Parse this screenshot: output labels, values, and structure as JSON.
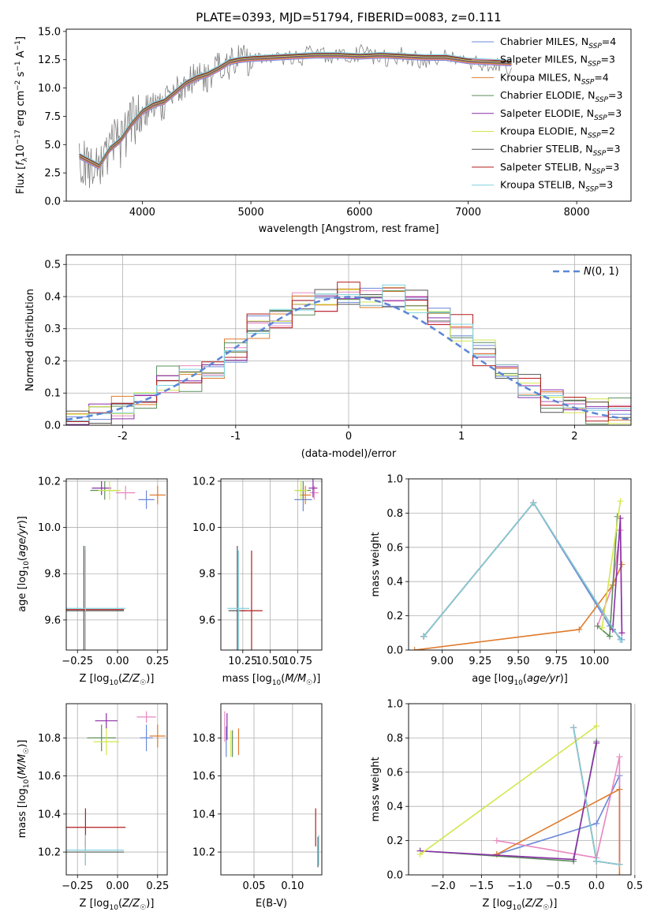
{
  "legend_series": [
    {
      "label": "Chabrier MILES, N_SSP=4",
      "color": "#6a88d8"
    },
    {
      "label": "Salpeter MILES, N_SSP=3",
      "color": "#e787c0"
    },
    {
      "label": "Kroupa MILES, N_SSP=4",
      "color": "#e07b2c"
    },
    {
      "label": "Chabrier ELODIE, N_SSP=3",
      "color": "#5b8f5b"
    },
    {
      "label": "Salpeter ELODIE, N_SSP=3",
      "color": "#8a2fa8"
    },
    {
      "label": "Kroupa ELODIE, N_SSP=2",
      "color": "#d3e64a"
    },
    {
      "label": "Chabrier STELIB, N_SSP=3",
      "color": "#555555"
    },
    {
      "label": "Salpeter STELIB, N_SSP=3",
      "color": "#b51c1c"
    },
    {
      "label": "Kroupa STELIB, N_SSP=3",
      "color": "#7fd3de"
    }
  ],
  "chart_data": [
    {
      "id": "spectrum",
      "type": "line",
      "title": "PLATE=0393, MJD=51794, FIBERID=0083, z=0.111",
      "xlabel": "wavelength [Angstrom, rest frame]",
      "ylabel": "Flux [f_λ 10^-17 erg cm^-2 s^-1 A^-1]",
      "xlim": [
        3300,
        8500
      ],
      "ylim": [
        0,
        15.2
      ],
      "xticks": [
        4000,
        5000,
        6000,
        7000,
        8000
      ],
      "yticks": [
        0.0,
        2.5,
        5.0,
        7.5,
        10.0,
        12.5,
        15.0
      ],
      "ytick_labels": [
        "0.0",
        "2.5",
        "5.0",
        "7.5",
        "10.0",
        "12.5",
        "15.0"
      ],
      "legend": "upper-right",
      "grid": false,
      "data_color": "#808080",
      "model_x": [
        3420,
        3500,
        3600,
        3700,
        3800,
        3900,
        4000,
        4100,
        4200,
        4300,
        4400,
        4500,
        4600,
        4700,
        4800,
        4900,
        5000,
        5200,
        5400,
        5600,
        5800,
        6000,
        6200,
        6400,
        6600,
        6800,
        7000,
        7200,
        7400
      ],
      "model_y": [
        4.0,
        3.6,
        3.1,
        4.6,
        5.4,
        6.8,
        7.9,
        8.5,
        8.8,
        9.6,
        10.4,
        10.9,
        11.2,
        11.7,
        12.3,
        12.5,
        12.6,
        12.7,
        12.8,
        12.9,
        12.9,
        12.8,
        12.9,
        12.8,
        12.7,
        12.7,
        12.4,
        12.3,
        12.2
      ],
      "observed_x": [
        3420,
        3500,
        3600,
        3700,
        3800,
        3900,
        4000,
        4100,
        4200,
        4300,
        4400,
        4500,
        4600,
        4700,
        4800,
        4900,
        5000,
        5200,
        5400,
        5600,
        5800,
        6000,
        6200,
        6400,
        6600,
        6800,
        7000,
        7200,
        7400
      ],
      "observed_y": [
        4.1,
        3.4,
        2.8,
        4.9,
        5.0,
        7.2,
        7.5,
        8.8,
        8.4,
        9.9,
        10.0,
        11.3,
        10.9,
        12.0,
        12.0,
        12.9,
        12.3,
        13.0,
        12.5,
        13.2,
        12.6,
        13.1,
        12.6,
        12.9,
        12.4,
        12.9,
        12.1,
        12.0,
        11.8
      ]
    },
    {
      "id": "residual-histogram",
      "type": "line",
      "xlabel": "(data-model)/error",
      "ylabel": "Normed distribution",
      "xlim": [
        -2.5,
        2.5
      ],
      "ylim": [
        0,
        0.53
      ],
      "xticks": [
        -2,
        -1,
        0,
        1,
        2
      ],
      "yticks": [
        0.0,
        0.1,
        0.2,
        0.3,
        0.4,
        0.5
      ],
      "ytick_labels": [
        "0.0",
        "0.1",
        "0.2",
        "0.3",
        "0.4",
        "0.5"
      ],
      "legend": "upper-right",
      "grid": true,
      "normal_curve_label": "N(0,1)",
      "normal_curve_color": "#5b86d6",
      "bins": [
        -2.5,
        -2.3,
        -2.1,
        -1.9,
        -1.7,
        -1.5,
        -1.3,
        -1.1,
        -0.9,
        -0.7,
        -0.5,
        -0.3,
        -0.1,
        0.1,
        0.3,
        0.5,
        0.7,
        0.9,
        1.1,
        1.3,
        1.5,
        1.7,
        1.9,
        2.1,
        2.3,
        2.5
      ],
      "hist_base": [
        0.02,
        0.03,
        0.05,
        0.08,
        0.13,
        0.15,
        0.17,
        0.22,
        0.31,
        0.33,
        0.37,
        0.39,
        0.4,
        0.39,
        0.4,
        0.38,
        0.34,
        0.29,
        0.23,
        0.17,
        0.11,
        0.08,
        0.06,
        0.04,
        0.04
      ],
      "hist_jitter": [
        0.01,
        -0.02,
        0.03,
        -0.01,
        0.04,
        -0.03,
        0.02,
        -0.04,
        0.05,
        -0.02,
        0.03,
        0.01,
        -0.03,
        0.06,
        -0.05,
        0.02,
        0.04,
        -0.02,
        0.03,
        -0.03,
        0.02,
        -0.01,
        0.01,
        0.02,
        -0.01
      ]
    },
    {
      "id": "age-vs-metallicity",
      "type": "scatter",
      "xlabel": "Z [log10(Z/Z☉)]",
      "ylabel": "age [log10(age/yr)]",
      "xlim": [
        -0.32,
        0.31
      ],
      "ylim": [
        9.47,
        10.21
      ],
      "xticks": [
        -0.25,
        0.0,
        0.25
      ],
      "xtick_labels": [
        "−0.25",
        "0.00",
        "0.25"
      ],
      "yticks": [
        9.6,
        9.8,
        10.0,
        10.2
      ],
      "ytick_labels": [
        "9.6",
        "9.8",
        "10.0",
        "10.2"
      ],
      "grid": true,
      "points": [
        {
          "x": 0.18,
          "y": 10.12,
          "dx": 0.05,
          "dy": 0.04,
          "color": "#6a88d8"
        },
        {
          "x": 0.05,
          "y": 10.15,
          "dx": 0.06,
          "dy": 0.03,
          "color": "#e787c0"
        },
        {
          "x": 0.25,
          "y": 10.14,
          "dx": 0.05,
          "dy": 0.04,
          "color": "#e07b2c"
        },
        {
          "x": -0.08,
          "y": 10.16,
          "dx": 0.09,
          "dy": 0.04,
          "color": "#5b8f5b"
        },
        {
          "x": -0.1,
          "y": 10.17,
          "dx": 0.06,
          "dy": 0.03,
          "color": "#8a2fa8"
        },
        {
          "x": -0.05,
          "y": 10.16,
          "dx": 0.07,
          "dy": 0.04,
          "color": "#d3e64a"
        },
        {
          "x": -0.21,
          "y": 9.64,
          "dx": 0.25,
          "dy": 0.28,
          "color": "#555555"
        },
        {
          "x": -0.2,
          "y": 9.645,
          "dx": 0.24,
          "dy": 0.26,
          "color": "#b51c1c"
        },
        {
          "x": -0.2,
          "y": 9.65,
          "dx": 0.25,
          "dy": 0.27,
          "color": "#7fd3de"
        }
      ]
    },
    {
      "id": "age-vs-mass",
      "type": "scatter",
      "xlabel": "mass [log10(M/M☉)]",
      "ylabel": "",
      "xlim": [
        10.05,
        10.97
      ],
      "ylim": [
        9.47,
        10.21
      ],
      "xticks": [
        10.25,
        10.5,
        10.75
      ],
      "xtick_labels": [
        "10.25",
        "10.50",
        "10.75"
      ],
      "yticks": [
        9.6,
        9.8,
        10.0,
        10.2
      ],
      "ytick_labels": [
        "9.6",
        "9.8",
        "10.0",
        "10.2"
      ],
      "grid": true,
      "points": [
        {
          "x": 10.8,
          "y": 10.12,
          "dx": 0.08,
          "dy": 0.05,
          "color": "#6a88d8"
        },
        {
          "x": 10.9,
          "y": 10.15,
          "dx": 0.04,
          "dy": 0.03,
          "color": "#e787c0"
        },
        {
          "x": 10.82,
          "y": 10.14,
          "dx": 0.05,
          "dy": 0.04,
          "color": "#e07b2c"
        },
        {
          "x": 10.8,
          "y": 10.16,
          "dx": 0.07,
          "dy": 0.04,
          "color": "#5b8f5b"
        },
        {
          "x": 10.89,
          "y": 10.17,
          "dx": 0.04,
          "dy": 0.04,
          "color": "#8a2fa8"
        },
        {
          "x": 10.78,
          "y": 10.16,
          "dx": 0.06,
          "dy": 0.04,
          "color": "#d3e64a"
        },
        {
          "x": 10.2,
          "y": 9.64,
          "dx": 0.08,
          "dy": 0.28,
          "color": "#555555"
        },
        {
          "x": 10.33,
          "y": 9.64,
          "dx": 0.1,
          "dy": 0.26,
          "color": "#b51c1c"
        },
        {
          "x": 10.21,
          "y": 9.65,
          "dx": 0.1,
          "dy": 0.25,
          "color": "#7fd3de"
        }
      ]
    },
    {
      "id": "weight-vs-age",
      "type": "line",
      "xlabel": "age [log10(age/yr)]",
      "ylabel": "mass weight",
      "xlim": [
        8.78,
        10.24
      ],
      "ylim": [
        0,
        1.0
      ],
      "xticks": [
        9.0,
        9.25,
        9.5,
        9.75,
        10.0
      ],
      "xtick_labels": [
        "9.00",
        "9.25",
        "9.50",
        "9.75",
        "10.00"
      ],
      "yticks": [
        0.0,
        0.2,
        0.4,
        0.6,
        0.8,
        1.0
      ],
      "ytick_labels": [
        "0.0",
        "0.2",
        "0.4",
        "0.6",
        "0.8",
        "1.0"
      ],
      "grid": true,
      "series": [
        {
          "color": "#6a88d8",
          "x": [
            8.88,
            9.6,
            10.1,
            10.18
          ],
          "y": [
            0.08,
            0.86,
            0.14,
            0.06
          ]
        },
        {
          "color": "#e787c0",
          "x": [
            10.02,
            10.12,
            10.17,
            10.18
          ],
          "y": [
            0.14,
            0.38,
            0.7,
            0.1
          ]
        },
        {
          "color": "#e07b2c",
          "x": [
            8.82,
            9.9,
            10.12,
            10.18
          ],
          "y": [
            0.0,
            0.12,
            0.38,
            0.5
          ]
        },
        {
          "color": "#5b8f5b",
          "x": [
            10.02,
            10.1,
            10.15
          ],
          "y": [
            0.14,
            0.08,
            0.78
          ]
        },
        {
          "color": "#8a2fa8",
          "x": [
            10.12,
            10.17,
            10.18
          ],
          "y": [
            0.12,
            0.77,
            0.1
          ]
        },
        {
          "color": "#d3e64a",
          "x": [
            10.05,
            10.17
          ],
          "y": [
            0.13,
            0.87
          ]
        },
        {
          "color": "#555555",
          "x": [
            8.88,
            9.6,
            10.17
          ],
          "y": [
            0.08,
            0.86,
            0.06
          ]
        },
        {
          "color": "#b51c1c",
          "x": [
            8.88,
            9.6,
            10.17
          ],
          "y": [
            0.08,
            0.86,
            0.06
          ]
        },
        {
          "color": "#7fd3de",
          "x": [
            8.88,
            9.6,
            10.17
          ],
          "y": [
            0.08,
            0.86,
            0.06
          ]
        }
      ]
    },
    {
      "id": "mass-vs-metallicity",
      "type": "scatter",
      "xlabel": "Z [log10(Z/Z☉)]",
      "ylabel": "mass [log10(M/M☉)]",
      "xlim": [
        -0.32,
        0.31
      ],
      "ylim": [
        10.08,
        10.98
      ],
      "xticks": [
        -0.25,
        0.0,
        0.25
      ],
      "xtick_labels": [
        "−0.25",
        "0.00",
        "0.25"
      ],
      "yticks": [
        10.2,
        10.4,
        10.6,
        10.8
      ],
      "ytick_labels": [
        "10.2",
        "10.4",
        "10.6",
        "10.8"
      ],
      "grid": true,
      "points": [
        {
          "x": 0.18,
          "y": 10.8,
          "dx": 0.04,
          "dy": 0.07,
          "color": "#6a88d8"
        },
        {
          "x": 0.18,
          "y": 10.91,
          "dx": 0.06,
          "dy": 0.03,
          "color": "#e787c0"
        },
        {
          "x": 0.25,
          "y": 10.81,
          "dx": 0.05,
          "dy": 0.06,
          "color": "#e07b2c"
        },
        {
          "x": -0.1,
          "y": 10.8,
          "dx": 0.09,
          "dy": 0.07,
          "color": "#5b8f5b"
        },
        {
          "x": -0.07,
          "y": 10.89,
          "dx": 0.07,
          "dy": 0.04,
          "color": "#8a2fa8"
        },
        {
          "x": -0.07,
          "y": 10.78,
          "dx": 0.08,
          "dy": 0.07,
          "color": "#d3e64a"
        },
        {
          "x": -0.2,
          "y": 10.2,
          "dx": 0.24,
          "dy": 0.07,
          "color": "#555555"
        },
        {
          "x": -0.2,
          "y": 10.33,
          "dx": 0.25,
          "dy": 0.1,
          "color": "#b51c1c"
        },
        {
          "x": -0.2,
          "y": 10.21,
          "dx": 0.24,
          "dy": 0.08,
          "color": "#7fd3de"
        }
      ]
    },
    {
      "id": "mass-vs-extinction",
      "type": "scatter",
      "xlabel": "E(B-V)",
      "ylabel": "",
      "xlim": [
        0.007,
        0.138
      ],
      "ylim": [
        10.08,
        10.98
      ],
      "xticks": [
        0.05,
        0.1
      ],
      "xtick_labels": [
        "0.05",
        "0.10"
      ],
      "yticks": [
        10.2,
        10.4,
        10.6,
        10.8
      ],
      "ytick_labels": [
        "10.2",
        "10.4",
        "10.6",
        "10.8"
      ],
      "grid": true,
      "points": [
        {
          "x": 0.014,
          "y": 10.78,
          "dx": 0,
          "dy": 0.08,
          "color": "#6a88d8"
        },
        {
          "x": 0.012,
          "y": 10.86,
          "dx": 0,
          "dy": 0.08,
          "color": "#e787c0"
        },
        {
          "x": 0.03,
          "y": 10.78,
          "dx": 0,
          "dy": 0.07,
          "color": "#e07b2c"
        },
        {
          "x": 0.022,
          "y": 10.77,
          "dx": 0,
          "dy": 0.07,
          "color": "#5b8f5b"
        },
        {
          "x": 0.015,
          "y": 10.86,
          "dx": 0,
          "dy": 0.07,
          "color": "#8a2fa8"
        },
        {
          "x": 0.02,
          "y": 10.77,
          "dx": 0,
          "dy": 0.07,
          "color": "#d3e64a"
        },
        {
          "x": 0.133,
          "y": 10.2,
          "dx": 0,
          "dy": 0.08,
          "color": "#555555"
        },
        {
          "x": 0.13,
          "y": 10.33,
          "dx": 0,
          "dy": 0.1,
          "color": "#b51c1c"
        },
        {
          "x": 0.134,
          "y": 10.21,
          "dx": 0,
          "dy": 0.08,
          "color": "#7fd3de"
        }
      ]
    },
    {
      "id": "weight-vs-metallicity",
      "type": "line",
      "xlabel": "Z [log10(Z/Z☉)]",
      "ylabel": "mass weight",
      "xlim": [
        -2.45,
        0.45
      ],
      "ylim": [
        0,
        1.0
      ],
      "xticks": [
        -2.0,
        -1.5,
        -1.0,
        -0.5,
        0.0,
        0.5
      ],
      "xtick_labels": [
        "−2.0",
        "−1.5",
        "−1.0",
        "−0.5",
        "0.0",
        "0.5"
      ],
      "yticks": [
        0.0,
        0.2,
        0.4,
        0.6,
        0.8,
        1.0
      ],
      "ytick_labels": [
        "0.0",
        "0.2",
        "0.4",
        "0.6",
        "0.8",
        "1.0"
      ],
      "grid": true,
      "series": [
        {
          "color": "#6a88d8",
          "x": [
            -1.3,
            0.0,
            0.3,
            0.3
          ],
          "y": [
            0.12,
            0.3,
            0.58,
            0.06
          ]
        },
        {
          "color": "#e787c0",
          "x": [
            -1.3,
            0.0,
            0.3,
            0.3
          ],
          "y": [
            0.2,
            0.1,
            0.69,
            0.06
          ]
        },
        {
          "color": "#e07b2c",
          "x": [
            -1.3,
            0.3,
            0.3
          ],
          "y": [
            0.12,
            0.5,
            0.0
          ]
        },
        {
          "color": "#5b8f5b",
          "x": [
            -2.3,
            -0.3,
            0.0
          ],
          "y": [
            0.14,
            0.08,
            0.78
          ]
        },
        {
          "color": "#8a2fa8",
          "x": [
            -2.3,
            -0.3,
            0.0
          ],
          "y": [
            0.14,
            0.09,
            0.77
          ]
        },
        {
          "color": "#d3e64a",
          "x": [
            -2.3,
            0.0
          ],
          "y": [
            0.12,
            0.87
          ]
        },
        {
          "color": "#555555",
          "x": [
            -0.3,
            0.0,
            0.3
          ],
          "y": [
            0.86,
            0.08,
            0.06
          ]
        },
        {
          "color": "#b51c1c",
          "x": [
            -0.3,
            0.0,
            0.3
          ],
          "y": [
            0.86,
            0.08,
            0.06
          ]
        },
        {
          "color": "#7fd3de",
          "x": [
            -0.3,
            0.0,
            0.3
          ],
          "y": [
            0.86,
            0.08,
            0.06
          ]
        }
      ]
    }
  ]
}
